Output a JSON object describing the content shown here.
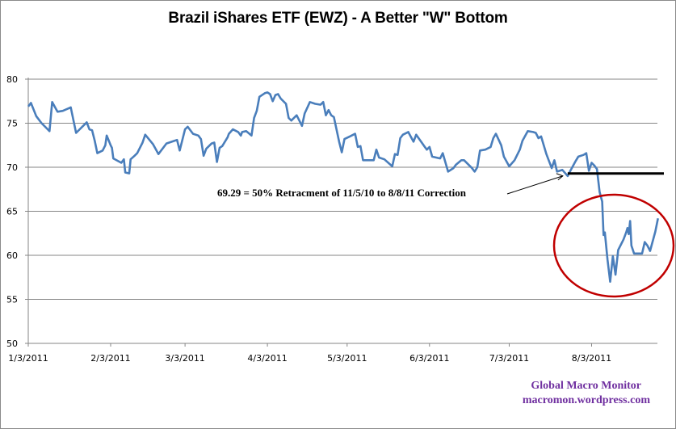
{
  "chart_data": {
    "type": "line",
    "title": "Brazil iShares ETF (EWZ) - A Better \"W\" Bottom",
    "xlabel": "",
    "ylabel": "",
    "ylim": [
      50,
      80
    ],
    "yticks": [
      "50",
      "55",
      "60",
      "65",
      "70",
      "75",
      "80"
    ],
    "xlim_days": [
      0,
      237
    ],
    "xticks": [
      {
        "label": "1/3/2011",
        "day": 0
      },
      {
        "label": "2/3/2011",
        "day": 31
      },
      {
        "label": "3/3/2011",
        "day": 59
      },
      {
        "label": "4/3/2011",
        "day": 90
      },
      {
        "label": "5/3/2011",
        "day": 120
      },
      {
        "label": "6/3/2011",
        "day": 151
      },
      {
        "label": "7/3/2011",
        "day": 181
      },
      {
        "label": "8/3/2011",
        "day": 212
      }
    ],
    "grid": true,
    "legend": "none",
    "series": [
      {
        "name": "EWZ",
        "color": "#4a7ebb",
        "points": [
          [
            0,
            76.9
          ],
          [
            1,
            77.3
          ],
          [
            3,
            75.8
          ],
          [
            5,
            75.0
          ],
          [
            8,
            74.1
          ],
          [
            9,
            77.4
          ],
          [
            11,
            76.3
          ],
          [
            13,
            76.4
          ],
          [
            16,
            76.8
          ],
          [
            18,
            73.9
          ],
          [
            21,
            74.8
          ],
          [
            22,
            75.1
          ],
          [
            23,
            74.3
          ],
          [
            24,
            74.2
          ],
          [
            25,
            73.0
          ],
          [
            26,
            71.6
          ],
          [
            28,
            71.9
          ],
          [
            29,
            72.5
          ],
          [
            29.5,
            73.6
          ],
          [
            31,
            72.5
          ],
          [
            31.5,
            72.2
          ],
          [
            32,
            71.0
          ],
          [
            35,
            70.5
          ],
          [
            36,
            70.9
          ],
          [
            36.5,
            69.4
          ],
          [
            38,
            69.3
          ],
          [
            38.5,
            70.9
          ],
          [
            40,
            71.3
          ],
          [
            41,
            71.6
          ],
          [
            43,
            72.8
          ],
          [
            44,
            73.7
          ],
          [
            47,
            72.6
          ],
          [
            49,
            71.5
          ],
          [
            52,
            72.7
          ],
          [
            54,
            72.9
          ],
          [
            56,
            73.1
          ],
          [
            57,
            71.9
          ],
          [
            59,
            74.3
          ],
          [
            60,
            74.6
          ],
          [
            62,
            73.8
          ],
          [
            64,
            73.6
          ],
          [
            65,
            73.2
          ],
          [
            66,
            71.3
          ],
          [
            67,
            72.1
          ],
          [
            69,
            72.7
          ],
          [
            70,
            72.8
          ],
          [
            71,
            70.6
          ],
          [
            72,
            72.2
          ],
          [
            73,
            72.4
          ],
          [
            75,
            73.4
          ],
          [
            75.5,
            73.8
          ],
          [
            77,
            74.3
          ],
          [
            79,
            74.0
          ],
          [
            80,
            73.6
          ],
          [
            80.5,
            74.0
          ],
          [
            82,
            74.1
          ],
          [
            84,
            73.6
          ],
          [
            85,
            75.6
          ],
          [
            86,
            76.4
          ],
          [
            87,
            78.0
          ],
          [
            89,
            78.4
          ],
          [
            90,
            78.5
          ],
          [
            91,
            78.3
          ],
          [
            92,
            77.5
          ],
          [
            93,
            78.2
          ],
          [
            94,
            78.3
          ],
          [
            95,
            77.8
          ],
          [
            97,
            77.2
          ],
          [
            98,
            75.6
          ],
          [
            99,
            75.3
          ],
          [
            101,
            75.9
          ],
          [
            102,
            75.3
          ],
          [
            103,
            74.7
          ],
          [
            104,
            76.1
          ],
          [
            106,
            77.4
          ],
          [
            108,
            77.2
          ],
          [
            110,
            77.1
          ],
          [
            111,
            77.4
          ],
          [
            112,
            75.9
          ],
          [
            113,
            76.5
          ],
          [
            114,
            75.9
          ],
          [
            115,
            75.7
          ],
          [
            117,
            72.9
          ],
          [
            118,
            71.7
          ],
          [
            119,
            73.2
          ],
          [
            121,
            73.5
          ],
          [
            123,
            73.8
          ],
          [
            124,
            72.3
          ],
          [
            125,
            72.4
          ],
          [
            126,
            70.8
          ],
          [
            130,
            70.8
          ],
          [
            131,
            72.0
          ],
          [
            132,
            71.1
          ],
          [
            134,
            70.9
          ],
          [
            137,
            70.1
          ],
          [
            138,
            71.5
          ],
          [
            139,
            71.4
          ],
          [
            140,
            73.3
          ],
          [
            141,
            73.7
          ],
          [
            143,
            74.0
          ],
          [
            145,
            72.9
          ],
          [
            146,
            73.7
          ],
          [
            149,
            72.4
          ],
          [
            150,
            72.0
          ],
          [
            151,
            72.3
          ],
          [
            152,
            71.2
          ],
          [
            155,
            71.0
          ],
          [
            156,
            71.6
          ],
          [
            158,
            69.5
          ],
          [
            160,
            69.9
          ],
          [
            161,
            70.3
          ],
          [
            163,
            70.8
          ],
          [
            164,
            70.8
          ],
          [
            166,
            70.2
          ],
          [
            167,
            69.9
          ],
          [
            168,
            69.5
          ],
          [
            169,
            70.0
          ],
          [
            170,
            71.9
          ],
          [
            172,
            72.0
          ],
          [
            174,
            72.3
          ],
          [
            175,
            73.3
          ],
          [
            176,
            73.8
          ],
          [
            178,
            72.5
          ],
          [
            179,
            71.2
          ],
          [
            181,
            70.1
          ],
          [
            183,
            70.8
          ],
          [
            185,
            72.0
          ],
          [
            186,
            73.0
          ],
          [
            188,
            74.1
          ],
          [
            190,
            74.0
          ],
          [
            191,
            73.9
          ],
          [
            192,
            73.3
          ],
          [
            193,
            73.5
          ],
          [
            195,
            71.5
          ],
          [
            196,
            70.7
          ],
          [
            197,
            69.9
          ],
          [
            198,
            70.8
          ],
          [
            199,
            69.5
          ],
          [
            201,
            69.7
          ],
          [
            203,
            69.0
          ],
          [
            204,
            69.6
          ],
          [
            206,
            70.7
          ],
          [
            207,
            71.2
          ],
          [
            209,
            71.4
          ],
          [
            210,
            71.6
          ],
          [
            211,
            69.6
          ],
          [
            212,
            70.5
          ],
          [
            213,
            70.2
          ],
          [
            214,
            69.8
          ],
          [
            215,
            67.2
          ],
          [
            216,
            66.1
          ],
          [
            216.5,
            62.3
          ],
          [
            217,
            62.6
          ],
          [
            218,
            59.5
          ],
          [
            219,
            57.0
          ],
          [
            220,
            59.9
          ],
          [
            221,
            57.8
          ],
          [
            222,
            60.6
          ],
          [
            224,
            61.8
          ],
          [
            225,
            62.6
          ],
          [
            225.5,
            63.1
          ],
          [
            226,
            62.4
          ],
          [
            226.5,
            63.9
          ],
          [
            227,
            61.1
          ],
          [
            228,
            60.2
          ],
          [
            230,
            60.2
          ],
          [
            231,
            60.2
          ],
          [
            232,
            61.5
          ],
          [
            233,
            61.1
          ],
          [
            234,
            60.5
          ],
          [
            236,
            62.7
          ],
          [
            237,
            64.2
          ]
        ]
      }
    ],
    "annotations": [
      {
        "text": "69.29 = 50% Retracment of 11/5/10 to 8/8/11 Correction",
        "type": "arrow-label",
        "points_to_day": 203,
        "points_to_value": 69.29
      },
      {
        "type": "hline",
        "value": 69.29,
        "from_day": 203,
        "to_day": 248,
        "color": "#000000"
      },
      {
        "type": "ellipse",
        "center_day": 227,
        "center_value": 61.0,
        "color": "#c00000"
      }
    ]
  },
  "watermark": {
    "line1": "Global  Macro Monitor",
    "line2": "macromon.wordpress.com",
    "color": "#7030a0"
  }
}
